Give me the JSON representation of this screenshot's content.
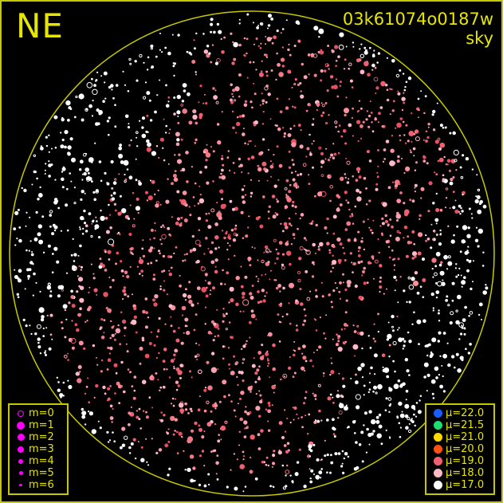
{
  "direction_label": "NE",
  "title": {
    "id": "03k61074o0187w",
    "subtitle": "sky"
  },
  "colors": {
    "frame": "#c8c800",
    "text": "#e6e600",
    "magnitude_symbol": "#ff00ff"
  },
  "magnitude_legend": [
    {
      "label": "m=0",
      "style": "ring"
    },
    {
      "label": "m=1",
      "style": "filled"
    },
    {
      "label": "m=2",
      "style": "filled"
    },
    {
      "label": "m=3",
      "style": "filled"
    },
    {
      "label": "m=4",
      "style": "filled"
    },
    {
      "label": "m=5",
      "style": "filled"
    },
    {
      "label": "m=6",
      "style": "filled"
    }
  ],
  "sky_brightness_legend": [
    {
      "label": "μ=22.0",
      "color": "#1a5cff"
    },
    {
      "label": "μ=21.5",
      "color": "#19e070"
    },
    {
      "label": "μ=21.0",
      "color": "#ffd800"
    },
    {
      "label": "μ=20.0",
      "color": "#ff5010"
    },
    {
      "label": "μ=19.0",
      "color": "#f06070"
    },
    {
      "label": "μ=18.0",
      "color": "#ffb8c8"
    },
    {
      "label": "μ=17.0",
      "color": "#ffffff"
    }
  ]
}
